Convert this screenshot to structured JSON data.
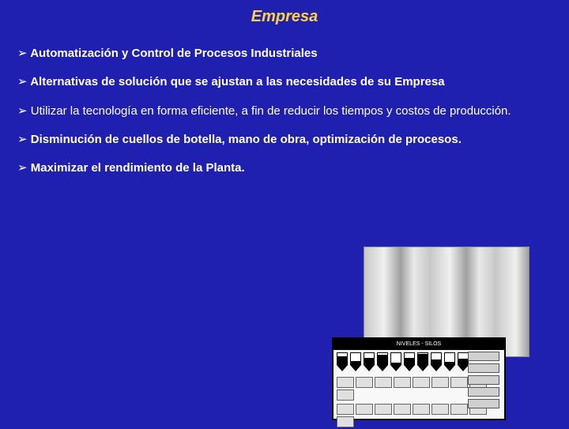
{
  "title": "Empresa",
  "bullets": {
    "b1": "Automatización y Control de Procesos Industriales",
    "b2": "Alternativas de solución que se ajustan a las necesidades de su Empresa",
    "b3": "Utilizar la tecnología en forma eficiente, a fin de reducir los tiempos y costos de producción.",
    "b4": "Disminución de cuellos de botella, mano de obra, optimización de procesos.",
    "b5": "Maximizar el rendimiento de la Planta."
  },
  "arrow_glyph": "➢",
  "panel": {
    "title": "NIVELES - SILOS",
    "silo_fills_pct": [
      70,
      30,
      55,
      85,
      15,
      60,
      95,
      40,
      25,
      50
    ],
    "button_count_row1": 9,
    "button_count_row2": 9,
    "right_buttons": 5
  },
  "colors": {
    "background": "#2020b0",
    "title": "#ffd040",
    "text": "#ffffff"
  },
  "fontsize": {
    "title_pt": 20,
    "body_pt": 15
  }
}
